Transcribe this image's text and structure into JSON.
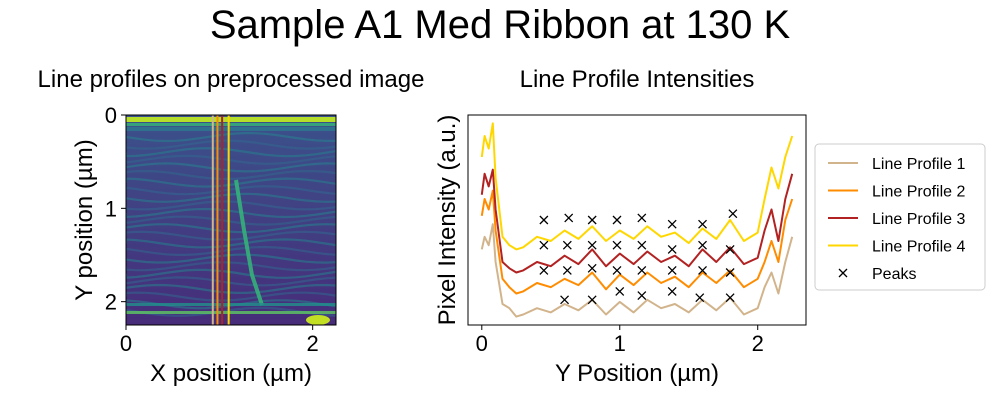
{
  "figure": {
    "suptitle": "Sample A1 Med Ribbon at 130 K"
  },
  "colors": {
    "line_profile_1": "#d2b48c",
    "line_profile_2": "#ff8c00",
    "line_profile_3": "#b22222",
    "line_profile_4": "#ffd700",
    "peaks": "#000000",
    "image_low": "#440154",
    "image_high": "#fde725"
  },
  "chart_data": [
    {
      "type": "heatmap",
      "title": "Line profiles on preprocessed image",
      "xlabel": "X position (µm)",
      "ylabel": "Y position (µm)",
      "xlim": [
        0,
        2.25
      ],
      "ylim": [
        2.25,
        0
      ],
      "xticks": [
        "0",
        "2"
      ],
      "yticks": [
        "0",
        "1",
        "2"
      ],
      "colormap": "viridis",
      "profile_lines_x": [
        {
          "name": "Line Profile 1",
          "x": 0.93
        },
        {
          "name": "Line Profile 2",
          "x": 0.98
        },
        {
          "name": "Line Profile 3",
          "x": 1.03
        },
        {
          "name": "Line Profile 4",
          "x": 1.1
        }
      ]
    },
    {
      "type": "line",
      "title": "Line Profile Intensities",
      "xlabel": "Y Position (µm)",
      "ylabel": "Pixel Intensity (a.u.)",
      "xlim": [
        -0.1,
        2.35
      ],
      "ylim": [
        0,
        1
      ],
      "xticks": [
        "0",
        "1",
        "2"
      ],
      "legend_position": "outside-right",
      "series": [
        {
          "name": "Line Profile 1",
          "x": [
            0,
            0.02,
            0.05,
            0.08,
            0.1,
            0.15,
            0.2,
            0.25,
            0.3,
            0.4,
            0.5,
            0.6,
            0.7,
            0.8,
            0.9,
            1.0,
            1.1,
            1.2,
            1.3,
            1.4,
            1.5,
            1.6,
            1.7,
            1.8,
            1.9,
            2.0,
            2.05,
            2.1,
            2.15,
            2.2,
            2.25
          ],
          "values": [
            0.36,
            0.42,
            0.38,
            0.48,
            0.3,
            0.1,
            0.08,
            0.04,
            0.05,
            0.08,
            0.06,
            0.1,
            0.07,
            0.12,
            0.05,
            0.11,
            0.06,
            0.12,
            0.08,
            0.1,
            0.06,
            0.12,
            0.07,
            0.13,
            0.05,
            0.08,
            0.18,
            0.25,
            0.15,
            0.3,
            0.42
          ]
        },
        {
          "name": "Line Profile 2",
          "x": [
            0,
            0.02,
            0.05,
            0.08,
            0.1,
            0.15,
            0.2,
            0.25,
            0.3,
            0.4,
            0.5,
            0.6,
            0.7,
            0.8,
            0.9,
            1.0,
            1.1,
            1.2,
            1.3,
            1.4,
            1.5,
            1.6,
            1.7,
            1.8,
            1.9,
            2.0,
            2.05,
            2.1,
            2.15,
            2.2,
            2.25
          ],
          "values": [
            0.52,
            0.6,
            0.55,
            0.64,
            0.45,
            0.22,
            0.18,
            0.15,
            0.16,
            0.2,
            0.18,
            0.22,
            0.19,
            0.25,
            0.17,
            0.24,
            0.19,
            0.25,
            0.2,
            0.23,
            0.18,
            0.25,
            0.2,
            0.26,
            0.18,
            0.22,
            0.3,
            0.4,
            0.3,
            0.5,
            0.6
          ]
        },
        {
          "name": "Line Profile 3",
          "x": [
            0,
            0.02,
            0.05,
            0.08,
            0.1,
            0.15,
            0.2,
            0.25,
            0.3,
            0.4,
            0.5,
            0.6,
            0.7,
            0.8,
            0.9,
            1.0,
            1.1,
            1.2,
            1.3,
            1.4,
            1.5,
            1.6,
            1.7,
            1.8,
            1.9,
            2.0,
            2.05,
            2.1,
            2.15,
            2.2,
            2.25
          ],
          "values": [
            0.62,
            0.72,
            0.66,
            0.74,
            0.55,
            0.3,
            0.27,
            0.25,
            0.26,
            0.3,
            0.28,
            0.33,
            0.29,
            0.36,
            0.28,
            0.34,
            0.29,
            0.35,
            0.3,
            0.33,
            0.28,
            0.36,
            0.3,
            0.37,
            0.29,
            0.32,
            0.45,
            0.55,
            0.4,
            0.6,
            0.72
          ]
        },
        {
          "name": "Line Profile 4",
          "x": [
            0,
            0.02,
            0.05,
            0.08,
            0.1,
            0.15,
            0.2,
            0.25,
            0.3,
            0.4,
            0.5,
            0.6,
            0.7,
            0.8,
            0.9,
            1.0,
            1.1,
            1.2,
            1.3,
            1.4,
            1.5,
            1.6,
            1.7,
            1.8,
            1.9,
            2.0,
            2.05,
            2.1,
            2.15,
            2.2,
            2.25
          ],
          "values": [
            0.8,
            0.9,
            0.84,
            0.96,
            0.7,
            0.42,
            0.38,
            0.36,
            0.37,
            0.42,
            0.4,
            0.45,
            0.41,
            0.47,
            0.4,
            0.45,
            0.41,
            0.47,
            0.42,
            0.44,
            0.39,
            0.46,
            0.41,
            0.5,
            0.4,
            0.44,
            0.6,
            0.75,
            0.65,
            0.8,
            0.9
          ]
        }
      ],
      "peaks": {
        "name": "Peaks",
        "points": [
          {
            "x": 0.45,
            "y": 0.5
          },
          {
            "x": 0.63,
            "y": 0.51
          },
          {
            "x": 0.8,
            "y": 0.5
          },
          {
            "x": 0.98,
            "y": 0.5
          },
          {
            "x": 1.16,
            "y": 0.51
          },
          {
            "x": 1.38,
            "y": 0.48
          },
          {
            "x": 1.6,
            "y": 0.48
          },
          {
            "x": 1.82,
            "y": 0.53
          },
          {
            "x": 0.45,
            "y": 0.38
          },
          {
            "x": 0.62,
            "y": 0.38
          },
          {
            "x": 0.8,
            "y": 0.38
          },
          {
            "x": 0.98,
            "y": 0.38
          },
          {
            "x": 1.16,
            "y": 0.38
          },
          {
            "x": 1.38,
            "y": 0.36
          },
          {
            "x": 1.6,
            "y": 0.38
          },
          {
            "x": 1.8,
            "y": 0.36
          },
          {
            "x": 0.45,
            "y": 0.26
          },
          {
            "x": 0.62,
            "y": 0.26
          },
          {
            "x": 0.8,
            "y": 0.27
          },
          {
            "x": 0.98,
            "y": 0.26
          },
          {
            "x": 1.16,
            "y": 0.26
          },
          {
            "x": 1.38,
            "y": 0.26
          },
          {
            "x": 1.6,
            "y": 0.26
          },
          {
            "x": 1.8,
            "y": 0.25
          },
          {
            "x": 0.6,
            "y": 0.12
          },
          {
            "x": 0.8,
            "y": 0.12
          },
          {
            "x": 1.0,
            "y": 0.16
          },
          {
            "x": 1.16,
            "y": 0.14
          },
          {
            "x": 1.38,
            "y": 0.16
          },
          {
            "x": 1.58,
            "y": 0.13
          },
          {
            "x": 1.8,
            "y": 0.13
          }
        ]
      }
    }
  ]
}
